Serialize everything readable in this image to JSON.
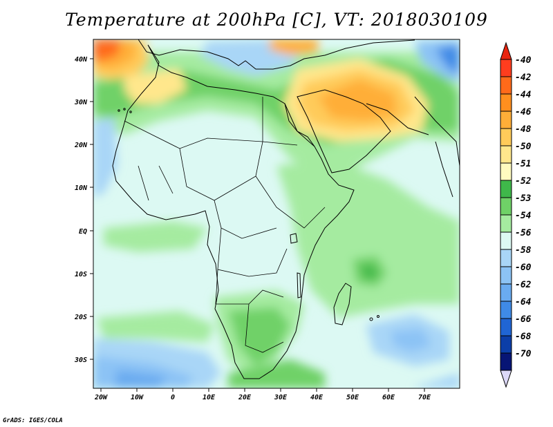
{
  "title": "Temperature at 200hPa [C], VT: 2018030109",
  "credit": "GrADS: IGES/COLA",
  "map": {
    "lat_labels": [
      "40N",
      "30N",
      "20N",
      "10N",
      "EQ",
      "10S",
      "20S",
      "30S"
    ],
    "lon_labels": [
      "20W",
      "10W",
      "0",
      "10E",
      "20E",
      "30E",
      "40E",
      "50E",
      "60E",
      "70E"
    ]
  },
  "colorbar": {
    "labels": [
      "-40",
      "-42",
      "-44",
      "-46",
      "-48",
      "-50",
      "-51",
      "-52",
      "-53",
      "-54",
      "-56",
      "-58",
      "-60",
      "-62",
      "-64",
      "-66",
      "-68",
      "-70"
    ],
    "colors": [
      "#ff3d1e",
      "#ff6a1a",
      "#ff8f1e",
      "#ffae38",
      "#ffcb5a",
      "#ffe78c",
      "#fffbbf",
      "#3fb84a",
      "#6fd167",
      "#a5eba0",
      "#dcf9f3",
      "#a9d6f7",
      "#8cc3f5",
      "#6aabf0",
      "#3f8ae6",
      "#2065d4",
      "#0c3ea8",
      "#071575"
    ],
    "top_arrow_color": "#e8240f",
    "bottom_arrow_color": "#dcd8f8"
  },
  "colors": {
    "background_field": "#dcf9f3",
    "coastline": "#000000"
  }
}
